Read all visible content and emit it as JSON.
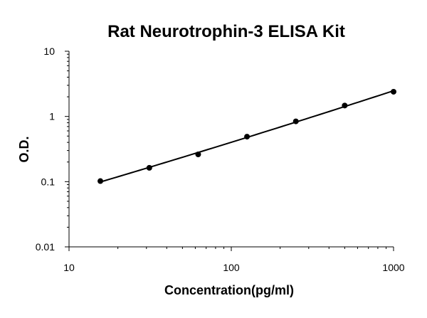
{
  "chart_data": {
    "type": "scatter",
    "title": "Rat Neurotrophin-3 ELISA Kit",
    "xlabel": "Concentration(pg/ml)",
    "ylabel": "O.D.",
    "xscale": "log",
    "yscale": "log",
    "xlim": [
      10,
      1000
    ],
    "ylim": [
      0.01,
      10
    ],
    "x_ticks": [
      "10",
      "100",
      "1000"
    ],
    "y_ticks": [
      "0.01",
      "0.1",
      "1",
      "10"
    ],
    "grid": false,
    "legend": "none",
    "series": [
      {
        "x": [
          15.6,
          31.25,
          62.5,
          125,
          250,
          500,
          1000
        ],
        "y": [
          0.102,
          0.163,
          0.262,
          0.49,
          0.84,
          1.47,
          2.39
        ]
      }
    ],
    "fit_line": true,
    "colors": {
      "marker": "#000000",
      "line": "#000000",
      "axis": "#000000"
    }
  }
}
